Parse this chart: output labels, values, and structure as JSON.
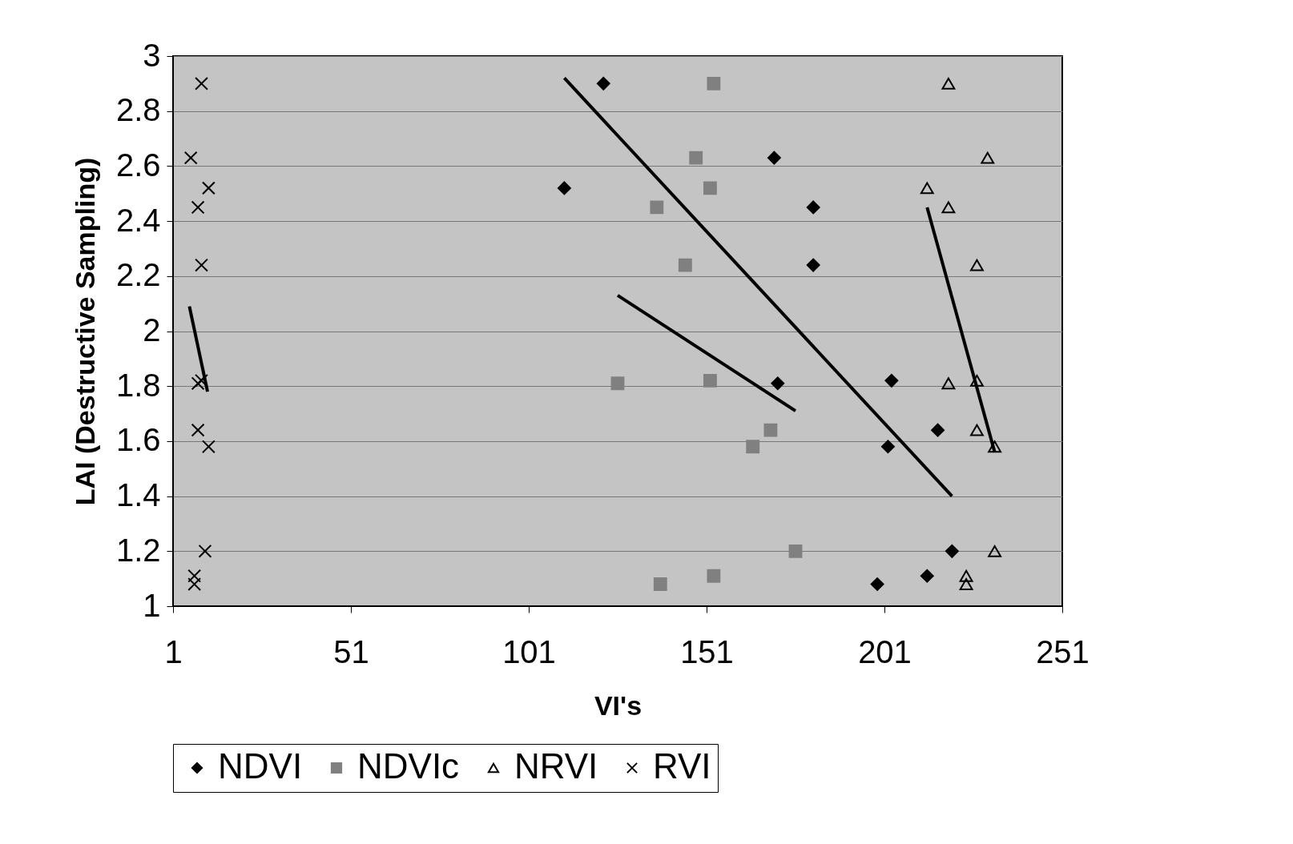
{
  "chart_data": {
    "type": "scatter",
    "xlabel": "VI's",
    "ylabel": "LAI (Destructive Sampling)",
    "xlim": [
      1,
      251
    ],
    "xticks": [
      1,
      51,
      101,
      151,
      201,
      251
    ],
    "ylim": [
      1,
      3
    ],
    "yticks": [
      1,
      1.2,
      1.4,
      1.6,
      1.8,
      2,
      2.2,
      2.4,
      2.6,
      2.8,
      3
    ],
    "grid": "y",
    "legend": "bottom",
    "series": [
      {
        "name": "NDVI",
        "color": "#000000",
        "marker": "diamond",
        "x": [
          111,
          122,
          170,
          171,
          181,
          181,
          203,
          202,
          216,
          220,
          213,
          199
        ],
        "values": [
          2.52,
          2.9,
          2.63,
          1.81,
          2.45,
          2.24,
          1.82,
          1.58,
          1.64,
          1.2,
          1.11,
          1.08
        ]
      },
      {
        "name": "NDVIc",
        "color": "#808080",
        "marker": "square",
        "x": [
          153,
          148,
          152,
          137,
          145,
          126,
          152,
          169,
          164,
          176,
          153,
          138
        ],
        "values": [
          2.9,
          2.63,
          2.52,
          2.45,
          2.24,
          1.81,
          1.82,
          1.64,
          1.58,
          1.2,
          1.11,
          1.08
        ]
      },
      {
        "name": "NRVI",
        "color": "#000000",
        "marker": "triangle",
        "x": [
          219,
          230,
          213,
          219,
          227,
          219,
          227,
          227,
          232,
          232,
          224,
          224
        ],
        "values": [
          2.9,
          2.63,
          2.52,
          2.45,
          2.24,
          1.81,
          1.82,
          1.64,
          1.58,
          1.2,
          1.11,
          1.08
        ]
      },
      {
        "name": "RVI",
        "color": "#000000",
        "marker": "cross",
        "x": [
          9,
          6,
          11,
          8,
          9,
          8,
          9,
          8,
          11,
          10,
          7,
          7
        ],
        "values": [
          2.9,
          2.63,
          2.52,
          2.45,
          2.24,
          1.81,
          1.82,
          1.64,
          1.58,
          1.2,
          1.11,
          1.08
        ]
      },
      {
        "type": "line",
        "color": "#000000",
        "x": [
          111,
          220
        ],
        "values": [
          2.92,
          1.4
        ]
      },
      {
        "type": "line",
        "color": "#000000",
        "x": [
          126,
          176
        ],
        "values": [
          2.13,
          1.71
        ]
      },
      {
        "type": "line",
        "color": "#000000",
        "x": [
          213,
          232
        ],
        "values": [
          2.45,
          1.56
        ]
      },
      {
        "type": "line",
        "color": "#000000",
        "x": [
          5.6,
          10.7
        ],
        "values": [
          2.09,
          1.78
        ]
      }
    ]
  }
}
